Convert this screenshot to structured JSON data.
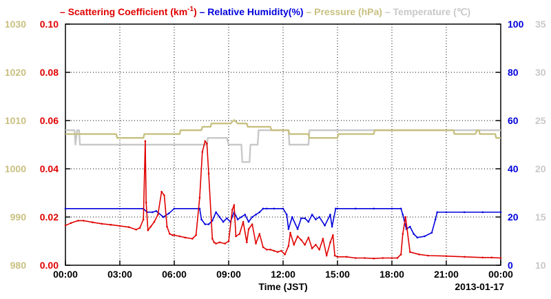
{
  "chart_data": {
    "type": "line",
    "title_parts": [
      {
        "text": "– Scattering Coefficient (km",
        "sup": "-1",
        "suffix": ")",
        "color": "#e00000"
      },
      {
        "text": "– Relative Humidity(%)",
        "color": "#0000dd"
      },
      {
        "text": "– Pressure (hPa)",
        "color": "#c8c080"
      },
      {
        "text": "– Temperature (℃)",
        "color": "#c8c8c8"
      }
    ],
    "xlabel": "Time (JST)",
    "date_label": "2013-01-17",
    "x_ticks": [
      "00:00",
      "03:00",
      "06:00",
      "09:00",
      "12:00",
      "15:00",
      "18:00",
      "21:00",
      "00:00"
    ],
    "xlim_hours": [
      0,
      24
    ],
    "axes": {
      "pressure": {
        "ylim": [
          980,
          1030
        ],
        "ticks": [
          "980",
          "990",
          "1000",
          "1010",
          "1020",
          "1030"
        ],
        "color": "#c8c080"
      },
      "scattering": {
        "ylim": [
          0,
          0.1
        ],
        "ticks": [
          "0.00",
          "0.02",
          "0.04",
          "0.06",
          "0.08",
          "0.10"
        ],
        "color": "#e00000"
      },
      "humidity": {
        "ylim": [
          0,
          100
        ],
        "ticks": [
          "0",
          "20",
          "40",
          "60",
          "80",
          "100"
        ],
        "color": "#0000dd"
      },
      "temperature": {
        "ylim": [
          10,
          35
        ],
        "ticks": [
          "10",
          "15",
          "20",
          "25",
          "30",
          "35"
        ],
        "color": "#c8c8c8"
      }
    },
    "series": [
      {
        "name": "Scattering Coefficient (km-1)",
        "axis": "scattering",
        "color": "#e00000",
        "x": [
          0,
          0.3,
          0.7,
          1.0,
          1.5,
          2.0,
          2.5,
          3.0,
          3.5,
          3.9,
          4.1,
          4.3,
          4.4,
          4.45,
          4.55,
          4.7,
          4.9,
          5.1,
          5.3,
          5.45,
          5.6,
          5.75,
          5.9,
          6.0,
          6.3,
          6.6,
          7.0,
          7.2,
          7.4,
          7.55,
          7.7,
          7.8,
          7.9,
          8.1,
          8.2,
          8.3,
          8.5,
          8.8,
          9.0,
          9.2,
          9.3,
          9.4,
          9.6,
          9.8,
          10.0,
          10.1,
          10.3,
          10.5,
          10.7,
          10.9,
          11.1,
          11.3,
          11.5,
          11.7,
          11.9,
          12.1,
          12.3,
          12.4,
          12.6,
          12.8,
          13.0,
          13.2,
          13.4,
          13.6,
          13.8,
          14.0,
          14.2,
          14.4,
          14.6,
          14.75,
          14.85,
          15.0,
          15.5,
          16.0,
          16.5,
          17.0,
          17.5,
          18.0,
          18.3,
          18.5,
          18.6,
          18.75,
          19.0,
          19.5,
          20.0,
          21.0,
          22.0,
          23.0,
          23.5,
          24.0
        ],
        "y": [
          0.0165,
          0.0175,
          0.0185,
          0.0185,
          0.0178,
          0.0172,
          0.0168,
          0.0163,
          0.0158,
          0.0148,
          0.0155,
          0.019,
          0.0515,
          0.026,
          0.0145,
          0.016,
          0.018,
          0.021,
          0.0305,
          0.029,
          0.016,
          0.013,
          0.0125,
          0.0125,
          0.012,
          0.0115,
          0.011,
          0.0125,
          0.028,
          0.047,
          0.0515,
          0.0505,
          0.038,
          0.011,
          0.0095,
          0.009,
          0.0095,
          0.009,
          0.01,
          0.023,
          0.025,
          0.012,
          0.013,
          0.018,
          0.0095,
          0.015,
          0.017,
          0.009,
          0.013,
          0.0075,
          0.0065,
          0.0065,
          0.006,
          0.0055,
          0.006,
          0.0045,
          0.008,
          0.0135,
          0.0085,
          0.012,
          0.0105,
          0.0085,
          0.0115,
          0.007,
          0.0085,
          0.0065,
          0.011,
          0.004,
          0.0095,
          0.0125,
          0.004,
          0.0035,
          0.0035,
          0.003,
          0.003,
          0.0028,
          0.003,
          0.003,
          0.003,
          0.0045,
          0.013,
          0.02,
          0.0055,
          0.0045,
          0.004,
          0.0038,
          0.0035,
          0.0032,
          0.0032,
          0.003
        ]
      },
      {
        "name": "Relative Humidity(%)",
        "axis": "humidity",
        "color": "#0000dd",
        "x": [
          0,
          4.3,
          4.5,
          4.8,
          5.0,
          5.4,
          5.7,
          6.0,
          7.4,
          7.5,
          7.7,
          7.9,
          8.1,
          8.3,
          8.5,
          8.7,
          8.9,
          9.1,
          9.3,
          9.5,
          9.7,
          9.9,
          10.1,
          10.3,
          10.5,
          10.7,
          10.9,
          11.1,
          11.5,
          12.0,
          12.2,
          12.3,
          12.5,
          12.8,
          13.0,
          13.2,
          13.4,
          13.6,
          13.8,
          14.0,
          14.3,
          14.6,
          14.7,
          14.9,
          15.0,
          16.0,
          17.0,
          18.0,
          18.5,
          18.6,
          18.8,
          19.0,
          19.2,
          19.4,
          19.8,
          20.2,
          20.4,
          20.5,
          21.0,
          22.0,
          23.0,
          24.0
        ],
        "y": [
          23.5,
          23.5,
          22,
          22,
          22.5,
          20,
          21.5,
          23.5,
          23.5,
          19,
          17,
          17,
          18.5,
          22,
          20,
          18,
          19.5,
          18,
          22,
          19,
          20,
          21,
          18,
          20,
          21,
          22,
          23.5,
          23.5,
          23.5,
          23.5,
          21,
          15,
          20,
          15,
          19.5,
          19.5,
          18,
          21,
          19,
          20,
          16.5,
          21,
          16,
          23.5,
          23.5,
          23.5,
          23.5,
          23.5,
          23.5,
          21,
          15,
          16,
          13,
          11.5,
          12,
          13.5,
          19,
          22,
          22,
          22,
          22,
          22
        ]
      },
      {
        "name": "Pressure (hPa)",
        "axis": "pressure",
        "color": "#c8c080",
        "x": [
          0,
          2.8,
          2.85,
          4.3,
          4.35,
          6.3,
          6.35,
          7.5,
          7.55,
          8.0,
          8.05,
          9.1,
          9.3,
          9.5,
          10.0,
          10.05,
          11.3,
          11.35,
          12.3,
          12.35,
          13.4,
          13.45,
          15.0,
          15.05,
          17.0,
          17.05,
          21.4,
          21.45,
          22.6,
          22.7,
          22.8,
          22.85,
          23.7,
          23.75,
          24.0
        ],
        "y": [
          1007.2,
          1007.2,
          1006.4,
          1006.4,
          1007.2,
          1007.2,
          1008.0,
          1008.0,
          1008.7,
          1008.7,
          1009.4,
          1009.4,
          1010.1,
          1009.4,
          1009.4,
          1008.7,
          1008.7,
          1008.0,
          1008.0,
          1007.2,
          1007.2,
          1006.4,
          1006.4,
          1007.2,
          1007.2,
          1008.0,
          1008.0,
          1007.2,
          1007.2,
          1008.0,
          1008.0,
          1007.2,
          1007.2,
          1006.4,
          1006.4
        ]
      },
      {
        "name": "Temperature (℃)",
        "axis": "temperature",
        "color": "#c8c8c8",
        "x": [
          0,
          0.5,
          0.55,
          0.65,
          0.75,
          0.8,
          1.0,
          2.0,
          3.0,
          4.0,
          5.0,
          6.0,
          7.0,
          7.8,
          7.85,
          8.9,
          9.0,
          9.7,
          9.75,
          10.15,
          10.2,
          10.6,
          10.65,
          11.4,
          11.45,
          12.3,
          12.35,
          13.4,
          13.45,
          15.0,
          18.0,
          21.0,
          24.0
        ],
        "y": [
          24.0,
          24.0,
          22.5,
          24.0,
          24.0,
          22.5,
          22.5,
          22.5,
          22.5,
          22.5,
          22.5,
          22.5,
          22.5,
          22.5,
          23.2,
          23.2,
          22.5,
          22.5,
          20.7,
          20.7,
          22.5,
          22.5,
          24.0,
          24.0,
          24.0,
          24.0,
          22.5,
          22.5,
          24.0,
          24.0,
          24.0,
          24.0,
          24.0
        ]
      }
    ]
  }
}
